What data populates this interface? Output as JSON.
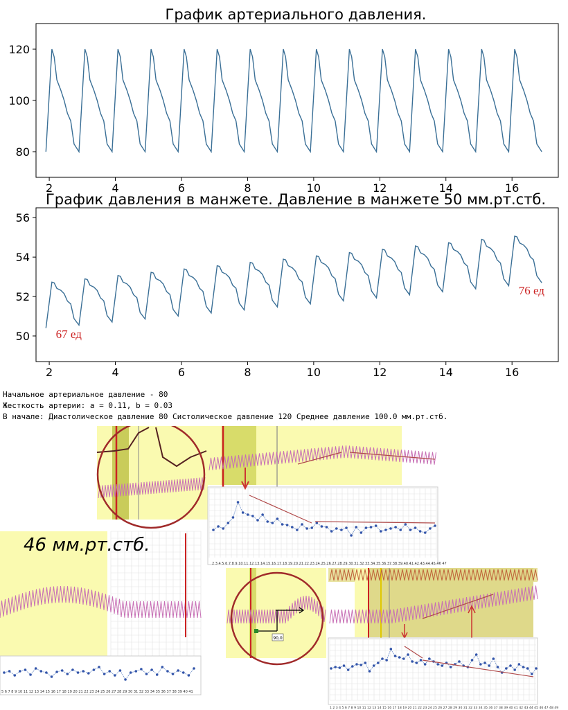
{
  "chart_data": [
    {
      "type": "line",
      "title": "График артериального давления.",
      "xlabel": "",
      "ylabel": "",
      "xlim": [
        1.6,
        17.4
      ],
      "ylim": [
        70,
        130
      ],
      "xticks": [
        2,
        4,
        6,
        8,
        10,
        12,
        14,
        16
      ],
      "yticks": [
        80,
        100,
        120
      ],
      "color": "#3a6f96",
      "grid": false,
      "series": [
        {
          "x_start": 1.9,
          "period": 1.0,
          "cycles": 15,
          "pulse_shape": [
            [
              0,
              80
            ],
            [
              0.18,
              120
            ],
            [
              0.25,
              117
            ],
            [
              0.33,
              108
            ],
            [
              0.45,
              104
            ],
            [
              0.55,
              100
            ],
            [
              0.65,
              95
            ],
            [
              0.75,
              92
            ],
            [
              0.85,
              83
            ],
            [
              1.0,
              80
            ]
          ]
        }
      ]
    },
    {
      "type": "line",
      "title": "График давления в манжете. Давление в манжете 50 мм.рт.стб.",
      "xlabel": "",
      "ylabel": "",
      "xlim": [
        1.6,
        17.4
      ],
      "ylim": [
        48.7,
        56.5
      ],
      "xticks": [
        2,
        4,
        6,
        8,
        10,
        12,
        14,
        16
      ],
      "yticks": [
        50,
        52,
        54,
        56
      ],
      "color": "#3a6f96",
      "grid": false,
      "series": [
        {
          "x_start": 1.9,
          "period": 1.0,
          "cycles": 15,
          "baseline_start": 50.4,
          "baseline_end": 52.7,
          "amplitude_start": 2.3,
          "amplitude_end": 2.5,
          "pulse_shape": [
            [
              0,
              0.0
            ],
            [
              0.18,
              1.0
            ],
            [
              0.25,
              0.98
            ],
            [
              0.33,
              0.85
            ],
            [
              0.45,
              0.8
            ],
            [
              0.55,
              0.72
            ],
            [
              0.65,
              0.55
            ],
            [
              0.75,
              0.48
            ],
            [
              0.85,
              0.15
            ],
            [
              1.0,
              0.0
            ]
          ]
        }
      ],
      "annotations": [
        {
          "text": "67 ед",
          "x": 2.2,
          "y": 49.9,
          "color": "#cc2222"
        },
        {
          "text": "76 ед",
          "x": 16.2,
          "y": 52.1,
          "color": "#cc2222"
        }
      ]
    }
  ],
  "info": {
    "line1": "Начальное артериальное давление - 80",
    "line2": "Жесткость артерии: a = 0.11, b = 0.03",
    "line3": "В начале: Диастолическое давление 80 Систолическое давление 120 Среднее давление 100.0 мм.рт.стб."
  },
  "collage": {
    "label_46": "46 мм.рт.стб.",
    "measure_value": "90,0",
    "scale_labels_a": "2 3 4 5 6 7 8 9 10 11 12 13 14 15 16 17 18 19 20 21 22 23 24 25 26 27 28 29 30 31 32 33 34 35 36 37 38 39 40 41 42 43 44 45 46 47",
    "scale_labels_b": "5 6 7 8 9 10 11 12 13 14 15 16 17 18 19 20 21 22 23 24 25 26 27 28 29 30 31 32 33 34 35 36 37 38 39 40 41",
    "scale_labels_c": "1 2 3 4 5 6 7 8 9 10 11 12 13 14 15 16 17 18 19 20 21 22 23 24 25 26 27 28 29 30 31 32 33 34 35 36 37 38 39 40 41 42 43 44 45 46 47 48 49"
  },
  "colors": {
    "line": "#3a6f96",
    "red": "#cc2222",
    "yellow": "#fafab0",
    "olive": "#c9cc5a",
    "pink": "#c76fb5",
    "dot": "#3355aa"
  }
}
